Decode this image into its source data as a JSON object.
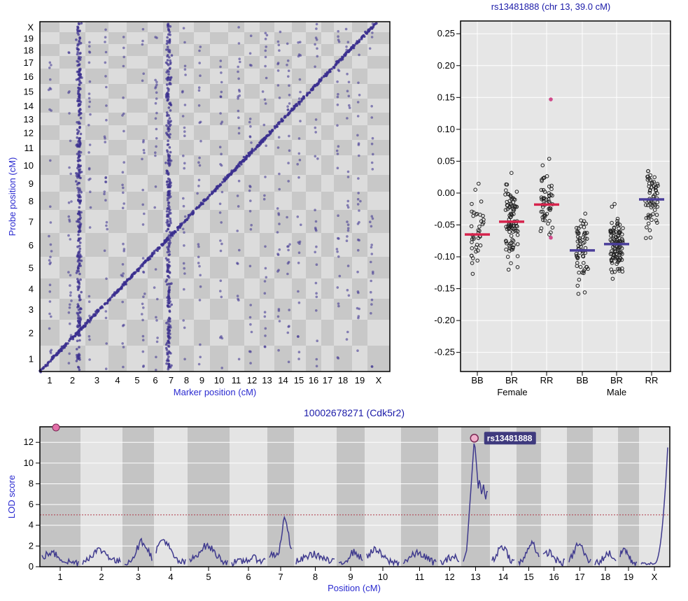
{
  "cistrans": {
    "x_axis_label": "Marker position (cM)",
    "y_axis_label": "Probe position (cM)",
    "chromosomes": [
      "1",
      "2",
      "3",
      "4",
      "5",
      "6",
      "7",
      "8",
      "9",
      "10",
      "11",
      "12",
      "13",
      "14",
      "15",
      "16",
      "17",
      "18",
      "19",
      "X"
    ]
  },
  "lod": {
    "title": "10002678271 (Cdk5r2)",
    "x_axis_label": "Position (cM)",
    "y_axis_label": "LOD score",
    "y_ticks": [
      "0",
      "2",
      "4",
      "6",
      "8",
      "10",
      "12"
    ],
    "threshold": 5,
    "peak_marker": "rs13481888",
    "peak_lod": 12.4
  },
  "effect": {
    "title": "rs13481888 (chr 13, 39.0 cM)",
    "y_ticks": [
      "-0.25",
      "-0.20",
      "-0.15",
      "-0.10",
      "-0.05",
      "0.00",
      "0.05",
      "0.10",
      "0.15",
      "0.20",
      "0.25"
    ],
    "groups": [
      "BB",
      "BR",
      "RR",
      "BB",
      "BR",
      "RR"
    ],
    "sex_labels": [
      "Female",
      "Male"
    ],
    "group_means": [
      -0.065,
      -0.045,
      -0.018,
      -0.09,
      -0.08,
      -0.01
    ],
    "mean_colors": [
      "#d6234c",
      "#d6234c",
      "#d6234c",
      "#4a3e9a",
      "#4a3e9a",
      "#4a3e9a"
    ]
  },
  "chart_data": [
    {
      "type": "scatter",
      "title": "",
      "xlabel": "Marker position (cM)",
      "ylabel": "Probe position (cM)",
      "categories": [
        "1",
        "2",
        "3",
        "4",
        "5",
        "6",
        "7",
        "8",
        "9",
        "10",
        "11",
        "12",
        "13",
        "14",
        "15",
        "16",
        "17",
        "18",
        "19",
        "X"
      ],
      "note_features": [
        "diagonal cis-eQTL band",
        "trans-band at chr 2",
        "trans-band at chr 7"
      ]
    },
    {
      "type": "scatter",
      "title": "rs13481888 (chr 13, 39.0 cM)",
      "xlabel": "",
      "ylabel": "",
      "categories": [
        "BB",
        "BR",
        "RR",
        "BB",
        "BR",
        "RR"
      ],
      "ylim": [
        -0.28,
        0.27
      ],
      "series": [
        {
          "name": "Female",
          "means": [
            -0.065,
            -0.045,
            -0.018
          ]
        },
        {
          "name": "Male",
          "means": [
            -0.09,
            -0.08,
            -0.01
          ]
        }
      ]
    },
    {
      "type": "line",
      "title": "10002678271 (Cdk5r2)",
      "xlabel": "Position (cM)",
      "ylabel": "LOD score",
      "ylim": [
        0,
        13.5
      ],
      "categories": [
        "1",
        "2",
        "3",
        "4",
        "5",
        "6",
        "7",
        "8",
        "9",
        "10",
        "11",
        "12",
        "13",
        "14",
        "15",
        "16",
        "17",
        "18",
        "19",
        "X"
      ],
      "chrom_peak_lod": [
        1.5,
        1.8,
        2.6,
        2.8,
        2.2,
        1.0,
        5.0,
        1.4,
        1.6,
        1.8,
        1.5,
        1.2,
        12.4,
        2.2,
        2.6,
        1.6,
        2.4,
        1.5,
        1.9,
        11.5
      ],
      "threshold": 5
    }
  ]
}
